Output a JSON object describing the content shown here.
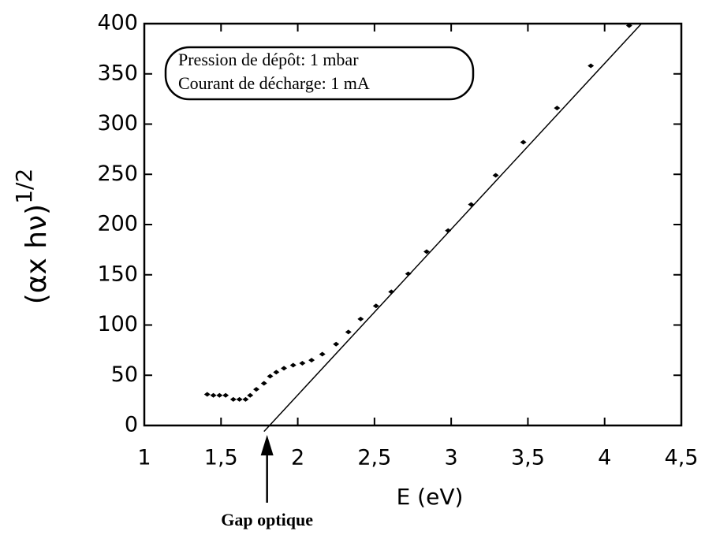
{
  "chart_data": {
    "type": "scatter",
    "x_label": "E (eV)",
    "y_label": "(αx hν)",
    "y_label_exponent": "1/2",
    "annotation_box": [
      "Pression de dépôt: 1 mbar",
      "Courant de décharge: 1 mA"
    ],
    "arrow_annotation": {
      "text": "Gap optique",
      "x": 1.8
    },
    "xlim": [
      1,
      4.5
    ],
    "ylim": [
      0,
      400
    ],
    "xticks": [
      1,
      {
        "value": 1.5,
        "label": "1,5"
      },
      2,
      {
        "value": 2.5,
        "label": "2,5"
      },
      3,
      {
        "value": 3.5,
        "label": "3,5"
      },
      4,
      {
        "value": 4.5,
        "label": "4,5"
      }
    ],
    "yticks": [
      0,
      50,
      100,
      150,
      200,
      250,
      300,
      350,
      400
    ],
    "color": "#000000",
    "x": [
      1.41,
      1.45,
      1.49,
      1.53,
      1.58,
      1.62,
      1.66,
      1.69,
      1.73,
      1.78,
      1.82,
      1.86,
      1.91,
      1.97,
      2.03,
      2.09,
      2.16,
      2.25,
      2.33,
      2.41,
      2.51,
      2.61,
      2.72,
      2.84,
      2.98,
      3.13,
      3.29,
      3.47,
      3.69,
      3.91,
      4.16
    ],
    "values": [
      31,
      30,
      30,
      30,
      26,
      26,
      26,
      30,
      36,
      42,
      49,
      53,
      57,
      60,
      62,
      65,
      71,
      81,
      93,
      106,
      119,
      133,
      151,
      173,
      194,
      220,
      249,
      282,
      316,
      358,
      398
    ],
    "fit_line": {
      "x": [
        1.78,
        4.24
      ],
      "values": [
        -6,
        400
      ]
    }
  }
}
